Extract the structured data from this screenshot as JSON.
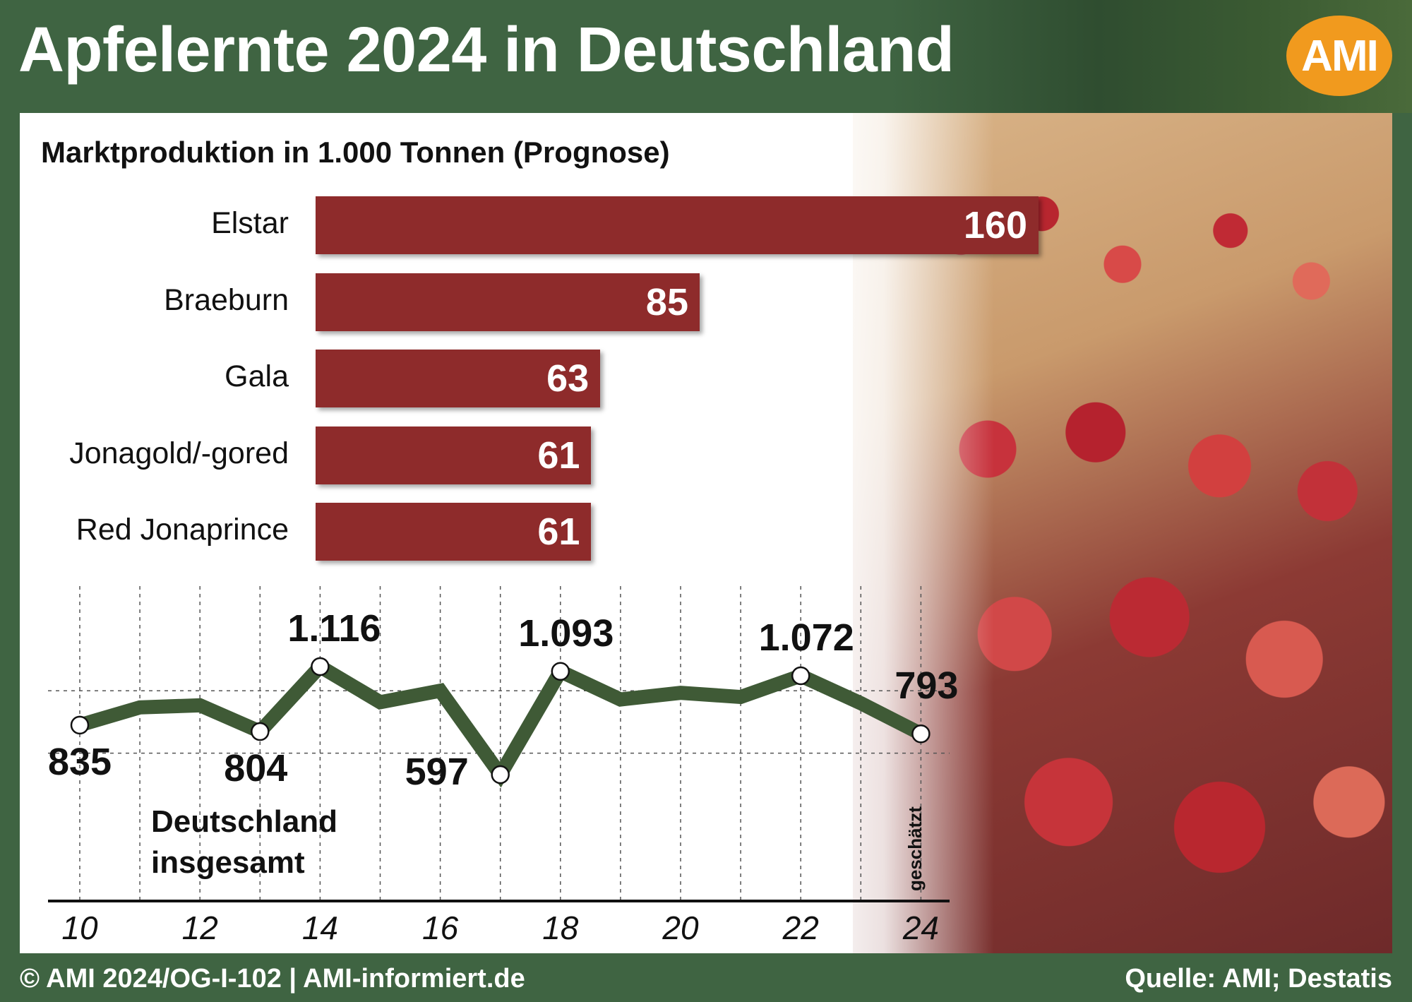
{
  "header": {
    "title": "Apfelernte 2024 in Deutschland",
    "logo_text": "AMI"
  },
  "colors": {
    "background": "#3f6442",
    "bar": "#8e2b2b",
    "line": "#3f5a36",
    "logo": "#f19a1e"
  },
  "footer": {
    "left": "© AMI 2024/OG-I-102 | AMI-informiert.de",
    "right": "Quelle: AMI; Destatis"
  },
  "chart_data": [
    {
      "type": "bar",
      "title": "Marktproduktion in 1.000 Tonnen (Prognose)",
      "orientation": "horizontal",
      "categories": [
        "Elstar",
        "Braeburn",
        "Gala",
        "Jonagold/-gored",
        "Red Jonaprince"
      ],
      "values": [
        160,
        85,
        63,
        61,
        61
      ],
      "value_labels": [
        "160",
        "85",
        "63",
        "61",
        "61"
      ]
    },
    {
      "type": "line",
      "series": [
        {
          "name": "Deutschland insgesamt",
          "x": [
            2010,
            2011,
            2012,
            2013,
            2014,
            2015,
            2016,
            2017,
            2018,
            2019,
            2020,
            2021,
            2022,
            2023,
            2024
          ],
          "values": [
            835,
            920,
            930,
            804,
            1116,
            945,
            1000,
            597,
            1093,
            958,
            990,
            970,
            1072,
            940,
            793
          ]
        }
      ],
      "series_label": [
        "Deutschland",
        "insgesamt"
      ],
      "labeled_points": [
        {
          "x": 2010,
          "label": "835"
        },
        {
          "x": 2013,
          "label": "804"
        },
        {
          "x": 2014,
          "label": "1.116"
        },
        {
          "x": 2017,
          "label": "597"
        },
        {
          "x": 2018,
          "label": "1.093"
        },
        {
          "x": 2022,
          "label": "1.072"
        },
        {
          "x": 2024,
          "label": "793"
        }
      ],
      "x_tick_labels": [
        "10",
        "12",
        "14",
        "16",
        "18",
        "20",
        "22",
        "24"
      ],
      "x_tick_values": [
        2010,
        2012,
        2014,
        2016,
        2018,
        2020,
        2022,
        2024
      ],
      "estimate_note": "geschätzt",
      "ylim": [
        500,
        1250
      ],
      "grid": true
    }
  ]
}
